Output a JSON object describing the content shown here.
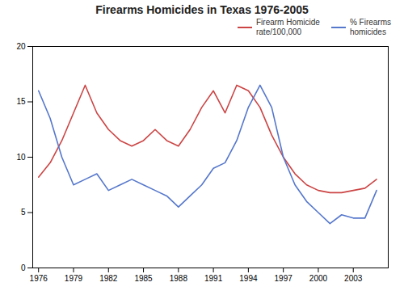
{
  "chart_data": {
    "type": "line",
    "title": "Firearms Homicides in Texas 1976-2005",
    "x": [
      1976,
      1977,
      1978,
      1979,
      1980,
      1981,
      1982,
      1983,
      1984,
      1985,
      1986,
      1987,
      1988,
      1989,
      1990,
      1991,
      1992,
      1993,
      1994,
      1995,
      1996,
      1997,
      1998,
      1999,
      2000,
      2001,
      2002,
      2003,
      2004,
      2005
    ],
    "series": [
      {
        "name": "Firearm Homicide\nrate/100,000",
        "color": "#cc4444",
        "values": [
          8.2,
          9.5,
          11.5,
          14.0,
          16.5,
          14.0,
          12.5,
          11.5,
          11.0,
          11.5,
          12.5,
          11.5,
          11.0,
          12.5,
          14.5,
          16.0,
          14.0,
          16.5,
          16.0,
          14.5,
          12.0,
          10.0,
          8.5,
          7.5,
          7.0,
          6.8,
          6.8,
          7.0,
          7.2,
          8.0
        ]
      },
      {
        "name": "% Firearms\nhomicides",
        "color": "#5577cc",
        "values": [
          16.0,
          13.5,
          10.0,
          7.5,
          8.0,
          8.5,
          7.0,
          7.5,
          8.0,
          7.5,
          7.0,
          6.5,
          5.5,
          6.5,
          7.5,
          9.0,
          9.5,
          11.5,
          14.5,
          16.5,
          14.5,
          10.0,
          7.5,
          6.0,
          5.0,
          4.0,
          4.8,
          4.5,
          4.5,
          7.0
        ]
      }
    ],
    "xlim": [
      1975.5,
      2006
    ],
    "xticks": [
      1976,
      1979,
      1982,
      1985,
      1988,
      1991,
      1994,
      1997,
      2000,
      2003
    ],
    "ylim": [
      0,
      20
    ],
    "yticks": [
      0,
      5,
      10,
      15,
      20
    ],
    "grid": false,
    "legend": "upper right"
  }
}
